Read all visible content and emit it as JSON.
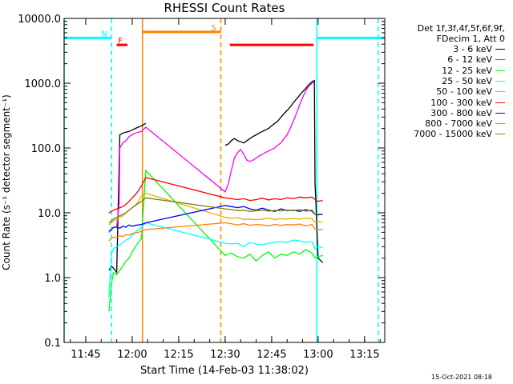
{
  "chart_data": {
    "type": "line",
    "title": "RHESSI Count Rates",
    "xlabel": "Start Time (14-Feb-03 11:38:02)",
    "ylabel": "Count Rate (s⁻¹ detector segment⁻¹)",
    "x_ticks": [
      "11:45",
      "12:00",
      "12:15",
      "12:30",
      "12:45",
      "13:00",
      "13:15"
    ],
    "x_tick_minutes": [
      45,
      60,
      75,
      90,
      105,
      120,
      135
    ],
    "xlim_minutes": [
      38.03,
      141.5
    ],
    "ylim": [
      0.1,
      10000
    ],
    "yscale": "log",
    "y_ticks": [
      "0.1",
      "1.0",
      "10.0",
      "100.0",
      "1000.0",
      "10000.0"
    ],
    "y_tick_values": [
      0.1,
      1,
      10,
      100,
      1000,
      10000
    ],
    "legend": {
      "header": [
        "Det 1f,3f,4f,5f,6f,9f,",
        "FDecim 1, Att 0"
      ],
      "placement": "right"
    },
    "series": [
      {
        "name": "3 - 6 keV",
        "color": "#000000",
        "x": [
          52.5,
          53.3,
          54,
          55,
          56,
          57,
          58,
          59,
          60,
          61,
          62,
          63,
          64.4,
          66,
          90,
          91,
          92,
          93,
          94,
          95,
          96,
          97,
          98,
          99,
          100,
          101,
          102,
          103,
          104,
          105,
          106,
          107,
          108,
          109,
          110,
          111,
          112,
          113,
          114,
          115,
          116,
          117,
          118,
          118.8,
          119,
          120,
          121.5
        ],
        "y": [
          1.3,
          1.5,
          1.4,
          1.2,
          160,
          170,
          175,
          180,
          190,
          200,
          210,
          220,
          240,
          0,
          110,
          115,
          130,
          140,
          130,
          125,
          120,
          130,
          140,
          150,
          160,
          170,
          180,
          190,
          200,
          220,
          240,
          260,
          300,
          340,
          380,
          430,
          500,
          570,
          650,
          740,
          830,
          950,
          1050,
          1100,
          30,
          2.0,
          1.7
        ]
      },
      {
        "name": "6 - 12 keV",
        "color": "#ff00ff",
        "x": [
          52.5,
          53.3,
          54,
          55,
          55.8,
          56,
          57,
          58,
          59,
          60,
          61,
          62,
          63,
          64.4,
          90,
          91,
          92,
          93,
          94,
          95,
          96,
          97,
          98,
          99,
          100,
          101,
          102,
          103,
          104,
          105,
          106,
          107,
          108,
          109,
          110,
          111,
          112,
          113,
          114,
          115,
          116,
          117,
          118,
          118.8
        ],
        "y": [
          5.0,
          5.5,
          6.0,
          6.0,
          14,
          100,
          120,
          130,
          150,
          160,
          170,
          175,
          180,
          210,
          21,
          28,
          45,
          70,
          85,
          95,
          80,
          65,
          62,
          65,
          70,
          75,
          80,
          85,
          90,
          95,
          100,
          110,
          120,
          140,
          160,
          200,
          260,
          340,
          460,
          600,
          770,
          900,
          1000,
          1050
        ]
      },
      {
        "name": "12 - 25 keV",
        "color": "#00ff00",
        "x": [
          52.5,
          53.3,
          54,
          55,
          56,
          57,
          58,
          59,
          60,
          61,
          62,
          63,
          64.4,
          90,
          92,
          94,
          96,
          98,
          100,
          102,
          104,
          106,
          108,
          110,
          112,
          114,
          116,
          118,
          119,
          120,
          121.5
        ],
        "y": [
          0.3,
          0.8,
          1.2,
          1.1,
          1.3,
          1.5,
          1.8,
          2.0,
          2.5,
          3.0,
          3.5,
          4.0,
          45,
          2.2,
          2.4,
          2.1,
          2.0,
          2.3,
          1.8,
          2.2,
          2.5,
          2.0,
          2.3,
          2.2,
          2.5,
          2.3,
          2.7,
          2.4,
          2.0,
          2.1,
          2.2
        ]
      },
      {
        "name": "25 - 50 keV",
        "color": "#00ffff",
        "x": [
          52.5,
          53.3,
          54,
          55,
          56,
          57,
          58,
          59,
          60,
          61,
          62,
          63,
          64.4,
          90,
          92,
          94,
          96,
          98,
          100,
          102,
          104,
          106,
          108,
          110,
          112,
          114,
          116,
          118,
          119,
          120,
          121.5
        ],
        "y": [
          0.5,
          2.3,
          2.8,
          3.0,
          3.2,
          3.5,
          3.8,
          4.0,
          4.5,
          5.0,
          5.5,
          6.0,
          7.0,
          3.4,
          3.3,
          3.4,
          3.0,
          3.5,
          3.3,
          3.2,
          3.4,
          3.5,
          3.6,
          3.5,
          3.8,
          3.7,
          3.5,
          3.6,
          2.8,
          3.0,
          2.9
        ]
      },
      {
        "name": "50 - 100 keV",
        "color": "#e0b000",
        "x": [
          52.5,
          53.3,
          54,
          55,
          56,
          57,
          58,
          59,
          60,
          61,
          62,
          63,
          64.4,
          90,
          92,
          94,
          96,
          98,
          100,
          102,
          104,
          106,
          108,
          110,
          112,
          114,
          116,
          118,
          119,
          120,
          121.5
        ],
        "y": [
          6.5,
          7.0,
          7.5,
          8.0,
          8.5,
          9.0,
          10.0,
          11.0,
          12.0,
          13.0,
          15.0,
          18.0,
          20.0,
          8.5,
          8.2,
          8.4,
          7.9,
          8.0,
          7.8,
          8.0,
          8.3,
          7.9,
          8.1,
          8.0,
          8.2,
          8.0,
          8.3,
          8.1,
          7.2,
          7.3,
          7.2
        ]
      },
      {
        "name": "100 - 300 keV",
        "color": "#ff0000",
        "x": [
          52.5,
          53.3,
          54,
          55,
          56,
          57,
          58,
          59,
          60,
          61,
          62,
          63,
          64.4,
          90,
          92,
          94,
          96,
          98,
          100,
          102,
          104,
          106,
          108,
          110,
          112,
          114,
          116,
          118,
          119,
          120,
          121.5
        ],
        "y": [
          10.0,
          10.5,
          11.0,
          11.5,
          12.0,
          12.5,
          13.5,
          15.0,
          17.0,
          19.0,
          22.0,
          26.0,
          35.0,
          17.0,
          16.5,
          16.0,
          16.5,
          15.5,
          16.0,
          16.8,
          15.8,
          16.5,
          16.0,
          17.0,
          16.5,
          17.5,
          17.0,
          17.5,
          16.0,
          15.0,
          15.5
        ]
      },
      {
        "name": "300 - 800 keV",
        "color": "#0000ff",
        "x": [
          52.5,
          53.3,
          54,
          55,
          56,
          57,
          58,
          59,
          60,
          61,
          62,
          63,
          64.4,
          90,
          92,
          94,
          96,
          98,
          100,
          102,
          104,
          106,
          108,
          110,
          112,
          114,
          116,
          118,
          119,
          120,
          121.5
        ],
        "y": [
          5.2,
          5.5,
          6.0,
          6.0,
          5.8,
          6.2,
          6.0,
          6.5,
          6.2,
          6.4,
          6.5,
          6.6,
          7.0,
          13.0,
          12.5,
          12.0,
          12.5,
          11.5,
          11.0,
          11.8,
          11.0,
          10.5,
          11.5,
          10.8,
          11.0,
          10.5,
          11.2,
          10.6,
          9.5,
          9.3,
          9.5
        ]
      },
      {
        "name": "800 - 7000 keV",
        "color": "#ff8000",
        "x": [
          52.5,
          53.3,
          54,
          55,
          56,
          57,
          58,
          59,
          60,
          61,
          62,
          63,
          64.4,
          90,
          92,
          94,
          96,
          98,
          100,
          102,
          104,
          106,
          108,
          110,
          112,
          114,
          116,
          118,
          119,
          120,
          121.5
        ],
        "y": [
          3.7,
          4.0,
          4.2,
          4.2,
          4.4,
          4.3,
          4.6,
          4.5,
          4.8,
          4.9,
          5.0,
          5.2,
          5.5,
          7.0,
          6.8,
          6.5,
          6.8,
          6.4,
          6.6,
          6.5,
          6.3,
          6.6,
          6.4,
          6.6,
          6.5,
          6.7,
          6.3,
          6.6,
          5.6,
          5.5,
          5.6
        ]
      },
      {
        "name": "7000 - 15000 keV",
        "color": "#808000",
        "x": [
          52.5,
          53.3,
          54,
          55,
          56,
          57,
          58,
          59,
          60,
          61,
          62,
          63,
          64.4,
          90,
          92,
          94,
          96,
          98,
          100,
          102,
          104,
          106,
          108,
          110,
          112,
          114,
          116,
          118,
          119,
          120,
          121.5
        ],
        "y": [
          7.0,
          7.5,
          8.0,
          8.5,
          9.0,
          9.5,
          10.0,
          11.0,
          12.0,
          13.0,
          14.0,
          15.0,
          17.0,
          11.5,
          11.2,
          10.8,
          11.0,
          10.5,
          10.8,
          11.0,
          10.6,
          10.9,
          10.7,
          11.0,
          10.8,
          11.2,
          10.6,
          11.0,
          9.6,
          9.5,
          9.6
        ]
      }
    ],
    "flags": [
      {
        "label": "N",
        "color": "#00ffff",
        "segments": [
          [
            38.03,
            53.3
          ],
          [
            119.6,
            141.5
          ]
        ],
        "y": 5000
      },
      {
        "label": "F",
        "color": "#ff0000",
        "segments": [
          [
            55,
            58.5
          ],
          [
            91.5,
            118.5
          ]
        ],
        "y": 3900
      },
      {
        "label": "S",
        "color": "#ff8000",
        "segments": [
          [
            63.3,
            88.6
          ]
        ],
        "y": 6200
      }
    ],
    "vertical_markers": [
      {
        "x": 38.03,
        "color": "#00ffff",
        "style": "solid"
      },
      {
        "x": 53.3,
        "color": "#00ffff",
        "style": "dashed"
      },
      {
        "x": 63.3,
        "color": "#ff8000",
        "style": "solid"
      },
      {
        "x": 88.6,
        "color": "#ff8000",
        "style": "dashed"
      },
      {
        "x": 119.6,
        "color": "#00ffff",
        "style": "solid"
      },
      {
        "x": 139.4,
        "color": "#00ffff",
        "style": "dashed"
      }
    ]
  },
  "timestamp": "15-Oct-2021 08:18"
}
